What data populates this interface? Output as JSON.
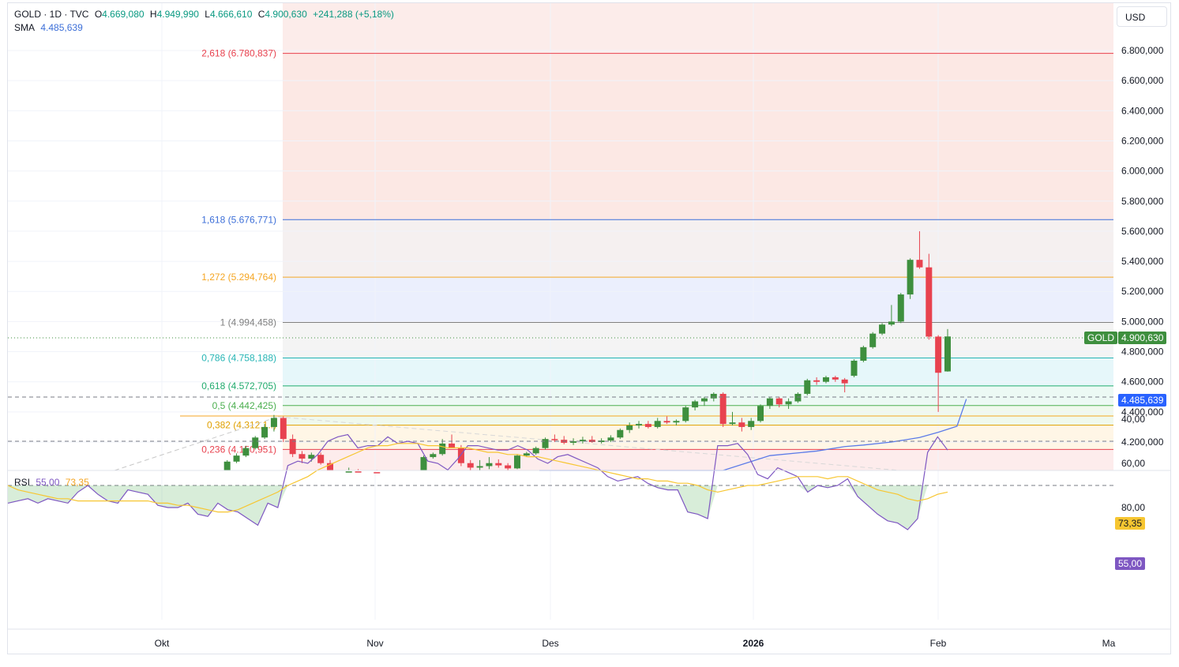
{
  "header": {
    "symbol": "GOLD · 1D · TVC",
    "o_label": "O",
    "o_value": "4.669,080",
    "h_label": "H",
    "h_value": "4.949,990",
    "l_label": "L",
    "l_value": "4.666,610",
    "c_label": "C",
    "c_value": "4.900,630",
    "change": "+241,288 (+5,18%)"
  },
  "sma": {
    "label": "SMA",
    "value": "4.485,639"
  },
  "rsi": {
    "label": "RSI",
    "value": "55,00",
    "ma_value": "73,35"
  },
  "currency": "USD",
  "tags": {
    "gold_label": "GOLD",
    "gold_price": "4.900,630",
    "sma_price": "4.485,639",
    "rsi_ma": "73,35",
    "rsi_val": "55,00"
  },
  "colors": {
    "up": "#3e8f3e",
    "down": "#e8424f",
    "sma": "#5b7be8",
    "rsi": "#7e57c2",
    "rsi_ma": "#f7c631"
  },
  "chart_data": {
    "type": "candlestick",
    "price_axis_ticks": [
      "6.800,000",
      "6.600,000",
      "6.400,000",
      "6.200,000",
      "6.000,000",
      "5.800,000",
      "5.600,000",
      "5.400,000",
      "5.200,000",
      "5.000,000",
      "4.800,000",
      "4.600,000",
      "4.400,000",
      "4.200,000"
    ],
    "price_axis_values": [
      6800,
      6600,
      6400,
      6200,
      6000,
      5800,
      5600,
      5400,
      5200,
      5000,
      4800,
      4600,
      4400,
      4200
    ],
    "ylim": [
      4000,
      7000
    ],
    "time_axis_labels": [
      "Okt",
      "Nov",
      "Des",
      "2026",
      "Feb",
      "Ma"
    ],
    "fib_levels": [
      {
        "label": "2,618 (6.780,837)",
        "value": 6780.837,
        "color": "#e8424f"
      },
      {
        "label": "1,618 (5.676,771)",
        "value": 5676.771,
        "color": "#3d6fd8"
      },
      {
        "label": "1,272 (5.294,764)",
        "value": 5294.764,
        "color": "#f5a623"
      },
      {
        "label": "1 (4.994,458)",
        "value": 4994.458,
        "color": "#808080"
      },
      {
        "label": "0,786 (4.758,188)",
        "value": 4758.188,
        "color": "#26b5b5"
      },
      {
        "label": "0,618 (4.572,705)",
        "value": 4572.705,
        "color": "#22ab6e"
      },
      {
        "label": "0,5 (4.442,425)",
        "value": 4442.425,
        "color": "#4caf50"
      },
      {
        "label": "0,382 (4.312,1..)",
        "value": 4312.1,
        "color": "#e0a000"
      },
      {
        "label": "0,236 (4.150,951)",
        "value": 4150.951,
        "color": "#e8424f"
      }
    ],
    "candles": [
      [
        3988,
        4005,
        3980,
        3998
      ],
      [
        3995,
        4008,
        3990,
        4002
      ],
      [
        4010,
        4080,
        4005,
        4070
      ],
      [
        4070,
        4125,
        4060,
        4110
      ],
      [
        4110,
        4175,
        4100,
        4160
      ],
      [
        4160,
        4240,
        4150,
        4230
      ],
      [
        4230,
        4320,
        4220,
        4300
      ],
      [
        4300,
        4380,
        4270,
        4360
      ],
      [
        4360,
        4370,
        4200,
        4220
      ],
      [
        4220,
        4250,
        4100,
        4120
      ],
      [
        4120,
        4140,
        4060,
        4090
      ],
      [
        4090,
        4130,
        4070,
        4115
      ],
      [
        4115,
        4130,
        4050,
        4060
      ],
      [
        4060,
        4080,
        3960,
        3980
      ],
      [
        3980,
        4010,
        3960,
        3995
      ],
      [
        3995,
        4030,
        3980,
        4005
      ],
      [
        4005,
        4020,
        3975,
        3985
      ],
      [
        3985,
        4010,
        3970,
        4000
      ],
      [
        4000,
        4015,
        3980,
        3990
      ],
      [
        3990,
        4005,
        3940,
        3960
      ],
      [
        3960,
        3990,
        3945,
        3975
      ],
      [
        3975,
        3995,
        3955,
        3965
      ],
      [
        3965,
        4000,
        3950,
        3990
      ],
      [
        3990,
        4110,
        3985,
        4100
      ],
      [
        4100,
        4130,
        4090,
        4120
      ],
      [
        4120,
        4220,
        4110,
        4190
      ],
      [
        4190,
        4250,
        4170,
        4160
      ],
      [
        4160,
        4180,
        4040,
        4060
      ],
      [
        4060,
        4080,
        4000,
        4030
      ],
      [
        4030,
        4080,
        4010,
        4040
      ],
      [
        4040,
        4100,
        4020,
        4060
      ],
      [
        4060,
        4085,
        4030,
        4045
      ],
      [
        4045,
        4060,
        4010,
        4025
      ],
      [
        4025,
        4120,
        4020,
        4110
      ],
      [
        4110,
        4135,
        4100,
        4125
      ],
      [
        4125,
        4170,
        4115,
        4160
      ],
      [
        4160,
        4230,
        4150,
        4220
      ],
      [
        4220,
        4250,
        4200,
        4215
      ],
      [
        4215,
        4240,
        4185,
        4195
      ],
      [
        4195,
        4225,
        4180,
        4205
      ],
      [
        4205,
        4235,
        4190,
        4215
      ],
      [
        4215,
        4240,
        4195,
        4200
      ],
      [
        4200,
        4225,
        4190,
        4210
      ],
      [
        4210,
        4245,
        4200,
        4230
      ],
      [
        4230,
        4290,
        4220,
        4280
      ],
      [
        4280,
        4330,
        4260,
        4310
      ],
      [
        4310,
        4340,
        4290,
        4320
      ],
      [
        4320,
        4340,
        4290,
        4300
      ],
      [
        4300,
        4360,
        4290,
        4340
      ],
      [
        4340,
        4370,
        4320,
        4330
      ],
      [
        4330,
        4350,
        4310,
        4340
      ],
      [
        4340,
        4440,
        4330,
        4430
      ],
      [
        4430,
        4480,
        4410,
        4470
      ],
      [
        4470,
        4500,
        4440,
        4490
      ],
      [
        4490,
        4530,
        4470,
        4520
      ],
      [
        4520,
        4530,
        4300,
        4320
      ],
      [
        4320,
        4400,
        4310,
        4330
      ],
      [
        4330,
        4360,
        4270,
        4300
      ],
      [
        4300,
        4360,
        4280,
        4340
      ],
      [
        4340,
        4450,
        4330,
        4440
      ],
      [
        4440,
        4500,
        4420,
        4490
      ],
      [
        4490,
        4500,
        4430,
        4450
      ],
      [
        4450,
        4490,
        4420,
        4470
      ],
      [
        4470,
        4530,
        4460,
        4520
      ],
      [
        4520,
        4620,
        4510,
        4610
      ],
      [
        4610,
        4630,
        4580,
        4600
      ],
      [
        4600,
        4640,
        4590,
        4630
      ],
      [
        4630,
        4640,
        4600,
        4615
      ],
      [
        4615,
        4625,
        4530,
        4590
      ],
      [
        4640,
        4750,
        4630,
        4740
      ],
      [
        4740,
        4840,
        4730,
        4830
      ],
      [
        4830,
        4930,
        4820,
        4920
      ],
      [
        4920,
        4990,
        4910,
        4980
      ],
      [
        4980,
        5110,
        4970,
        5000
      ],
      [
        5000,
        5190,
        4990,
        5180
      ],
      [
        5180,
        5420,
        5150,
        5410
      ],
      [
        5410,
        5600,
        5350,
        5360
      ],
      [
        5360,
        5450,
        4880,
        4900
      ],
      [
        4900,
        4910,
        4400,
        4660
      ],
      [
        4669,
        4950,
        4667,
        4901
      ]
    ],
    "sma_values": [
      [
        55,
        4000
      ],
      [
        60,
        4110
      ],
      [
        65,
        4140
      ],
      [
        68,
        4170
      ],
      [
        70,
        4180
      ],
      [
        73,
        4200
      ],
      [
        76,
        4230
      ],
      [
        78,
        4265
      ],
      [
        80,
        4305
      ],
      [
        81,
        4485
      ]
    ],
    "rsi_axis": [
      "80,00",
      "60,00",
      "40,00"
    ],
    "rsi_ylim": [
      25,
      95
    ],
    "rsi_bands": [
      70,
      50,
      30
    ],
    "rsi_values": [
      78,
      77,
      76,
      78,
      76,
      77,
      78,
      73,
      70,
      74,
      77,
      78,
      72,
      73,
      74,
      79,
      80,
      80,
      78,
      83,
      84,
      78,
      81,
      82,
      85,
      88,
      78,
      80,
      61,
      59,
      60,
      56,
      50,
      48,
      47,
      53,
      52,
      52,
      48,
      51,
      50,
      51,
      59,
      60,
      63,
      58,
      52,
      52,
      53,
      54,
      54,
      52,
      54,
      58,
      60,
      57,
      56,
      58,
      60,
      62,
      66,
      68,
      67,
      66,
      69,
      71,
      72,
      72,
      82,
      83,
      85,
      52,
      52,
      51,
      56,
      65,
      67,
      62,
      64,
      66,
      73,
      70,
      71,
      70,
      67,
      75,
      79,
      83,
      86,
      87,
      90,
      85,
      55,
      48,
      54
    ],
    "rsi_ma_values": [
      70,
      72,
      73,
      74,
      75,
      76,
      76,
      77,
      77,
      77,
      77,
      77,
      77,
      77,
      77,
      78,
      78,
      79,
      79,
      80,
      81,
      82,
      82,
      81,
      79,
      77,
      75,
      73,
      70,
      68,
      66,
      63,
      61,
      59,
      57,
      55,
      53,
      52,
      52,
      51,
      51,
      51,
      52,
      52,
      53,
      53,
      53,
      54,
      55,
      55,
      56,
      56,
      57,
      57,
      58,
      59,
      60,
      61,
      62,
      63,
      64,
      65,
      66,
      67,
      67,
      68,
      68,
      69,
      69,
      70,
      72,
      73,
      72,
      71,
      70,
      70,
      69,
      68,
      67,
      66,
      66,
      66,
      67,
      66,
      66,
      68,
      70,
      72,
      73,
      74,
      76,
      77,
      76,
      74,
      73
    ]
  }
}
